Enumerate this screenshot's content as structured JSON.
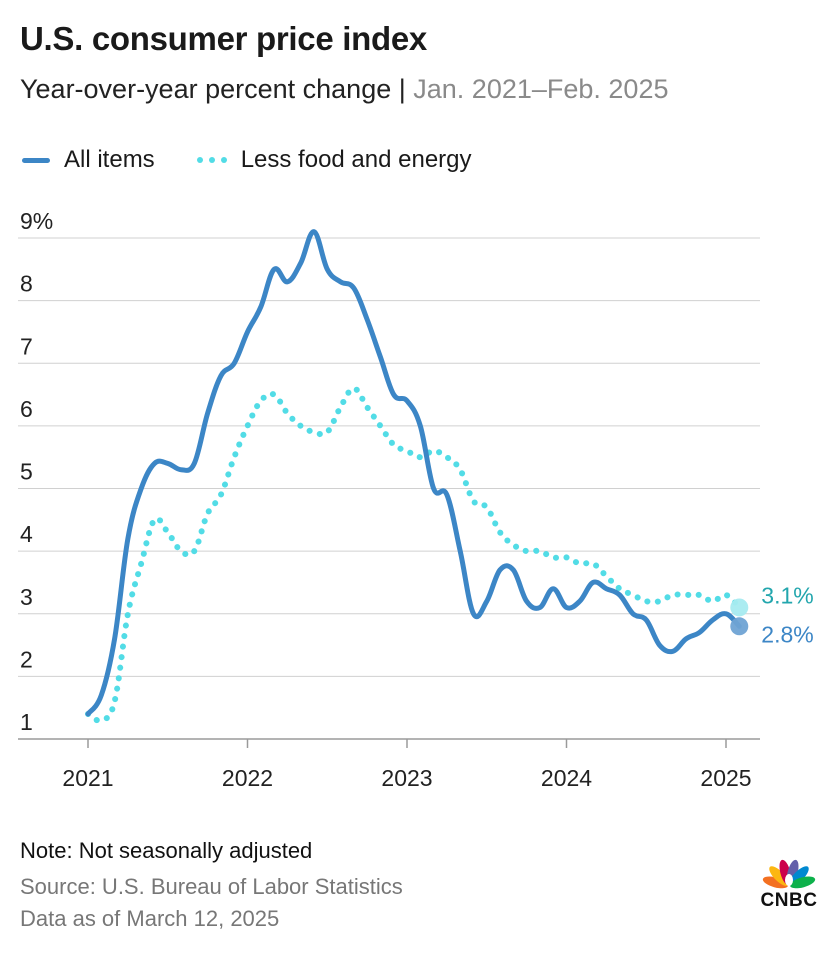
{
  "header": {
    "title": "U.S. consumer price index",
    "subtitle_main": "Year-over-year percent change",
    "subtitle_sep": " | ",
    "subtitle_range": "Jan. 2021–Feb. 2025"
  },
  "legend": {
    "all_items": "All items",
    "core": "Less food and energy"
  },
  "colors": {
    "all_items": "#3c86c6",
    "core": "#52dce6",
    "grid": "#d0d0d0",
    "axis_text": "#222222",
    "end_label_all": "#3c86c6",
    "end_label_core": "#22a6ad"
  },
  "chart_data": {
    "type": "line",
    "ylim": [
      1,
      9
    ],
    "y_ticks": [
      1,
      2,
      3,
      4,
      5,
      6,
      7,
      8,
      9
    ],
    "y_tick_labels": [
      "1",
      "2",
      "3",
      "4",
      "5",
      "6",
      "7",
      "8",
      "9%"
    ],
    "x_tick_labels": [
      "2021",
      "2022",
      "2023",
      "2024",
      "2025"
    ],
    "x": [
      "2021-01",
      "2021-02",
      "2021-03",
      "2021-04",
      "2021-05",
      "2021-06",
      "2021-07",
      "2021-08",
      "2021-09",
      "2021-10",
      "2021-11",
      "2021-12",
      "2022-01",
      "2022-02",
      "2022-03",
      "2022-04",
      "2022-05",
      "2022-06",
      "2022-07",
      "2022-08",
      "2022-09",
      "2022-10",
      "2022-11",
      "2022-12",
      "2023-01",
      "2023-02",
      "2023-03",
      "2023-04",
      "2023-05",
      "2023-06",
      "2023-07",
      "2023-08",
      "2023-09",
      "2023-10",
      "2023-11",
      "2023-12",
      "2024-01",
      "2024-02",
      "2024-03",
      "2024-04",
      "2024-05",
      "2024-06",
      "2024-07",
      "2024-08",
      "2024-09",
      "2024-10",
      "2024-11",
      "2024-12",
      "2025-01",
      "2025-02"
    ],
    "series": [
      {
        "name": "All items",
        "style": "solid",
        "values": [
          1.4,
          1.7,
          2.6,
          4.2,
          5.0,
          5.4,
          5.4,
          5.3,
          5.4,
          6.2,
          6.8,
          7.0,
          7.5,
          7.9,
          8.5,
          8.3,
          8.6,
          9.1,
          8.5,
          8.3,
          8.2,
          7.7,
          7.1,
          6.5,
          6.4,
          6.0,
          5.0,
          4.9,
          4.0,
          3.0,
          3.2,
          3.7,
          3.7,
          3.2,
          3.1,
          3.4,
          3.1,
          3.2,
          3.5,
          3.4,
          3.3,
          3.0,
          2.9,
          2.5,
          2.4,
          2.6,
          2.7,
          2.9,
          3.0,
          2.8
        ]
      },
      {
        "name": "Less food and energy",
        "style": "dotted",
        "values": [
          1.4,
          1.3,
          1.6,
          3.0,
          3.8,
          4.5,
          4.3,
          4.0,
          4.0,
          4.6,
          4.9,
          5.5,
          6.0,
          6.4,
          6.5,
          6.2,
          6.0,
          5.9,
          5.9,
          6.3,
          6.6,
          6.3,
          6.0,
          5.7,
          5.6,
          5.5,
          5.6,
          5.5,
          5.3,
          4.8,
          4.7,
          4.3,
          4.1,
          4.0,
          4.0,
          3.9,
          3.9,
          3.8,
          3.8,
          3.6,
          3.4,
          3.3,
          3.2,
          3.2,
          3.3,
          3.3,
          3.3,
          3.2,
          3.3,
          3.1
        ]
      }
    ],
    "end_labels": {
      "all_items": "2.8%",
      "core": "3.1%"
    },
    "grid": true,
    "legend_position": "top-left"
  },
  "footer": {
    "note": "Note: Not seasonally adjusted",
    "source": "Source: U.S. Bureau of Labor Statistics",
    "as_of": "Data as of March 12, 2025",
    "logo_text": "CNBC"
  }
}
